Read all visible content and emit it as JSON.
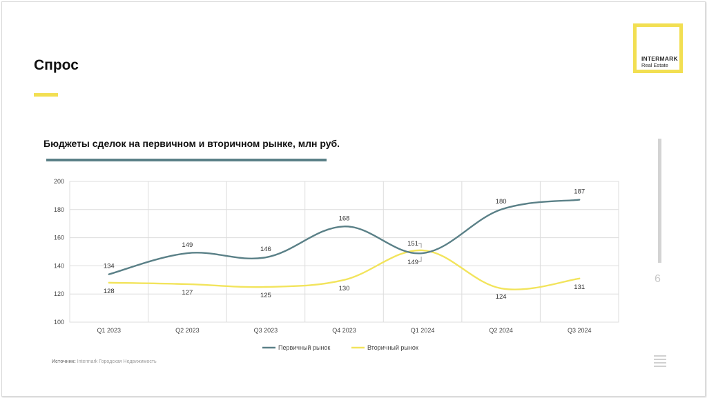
{
  "page": {
    "title": "Спрос",
    "page_number": "6",
    "source_label": "Источник:",
    "source_text": "Intermark Городская Недвижимость",
    "accent_color": "#f2df52"
  },
  "logo": {
    "name": "INTERMARK",
    "sub": "Real Estate"
  },
  "chart_data": {
    "type": "line",
    "title": "Бюджеты сделок на первичном и вторичном рынке, млн руб.",
    "categories": [
      "Q1 2023",
      "Q2 2023",
      "Q3 2023",
      "Q4 2023",
      "Q1 2024",
      "Q2 2024",
      "Q3 2024"
    ],
    "series": [
      {
        "name": "Первичный рынок",
        "color": "#5a8087",
        "values": [
          134,
          149,
          146,
          168,
          149,
          180,
          187
        ]
      },
      {
        "name": "Вторичный рынок",
        "color": "#f2e45c",
        "values": [
          128,
          127,
          125,
          130,
          151,
          124,
          131
        ]
      }
    ],
    "ylim": [
      100,
      200
    ],
    "yticks": [
      100,
      120,
      140,
      160,
      180,
      200
    ],
    "grid": true,
    "legend": "bottom",
    "xlabel": "",
    "ylabel": ""
  }
}
